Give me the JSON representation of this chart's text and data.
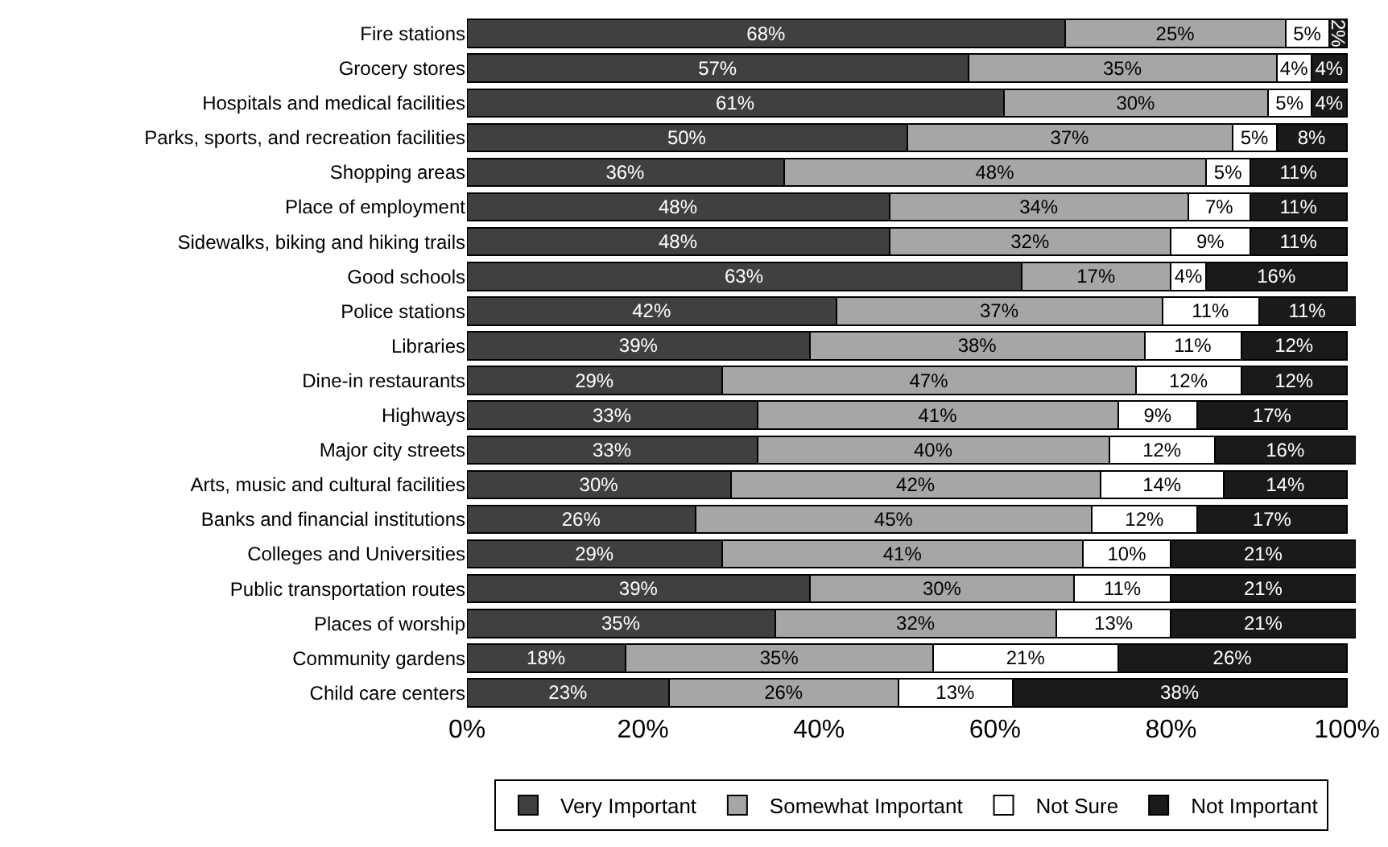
{
  "chart_data": {
    "type": "bar",
    "orientation": "horizontal",
    "stacked": true,
    "categories": [
      "Fire stations",
      "Grocery stores",
      "Hospitals and medical facilities",
      "Parks, sports, and recreation facilities",
      "Shopping areas",
      "Place of employment",
      "Sidewalks, biking and hiking trails",
      "Good schools",
      "Police stations",
      "Libraries",
      "Dine-in restaurants",
      "Highways",
      "Major city streets",
      "Arts, music and cultural facilities",
      "Banks and financial institutions",
      "Colleges and Universities",
      "Public transportation routes",
      "Places of worship",
      "Community gardens",
      "Child care centers"
    ],
    "series": [
      {
        "name": "Very Important",
        "color": "#404040",
        "values": [
          68,
          57,
          61,
          50,
          36,
          48,
          48,
          63,
          42,
          39,
          29,
          33,
          33,
          30,
          26,
          29,
          39,
          35,
          18,
          23
        ],
        "value_labels": [
          "68%",
          "57%",
          "61%",
          "50%",
          "36%",
          "48%",
          "48%",
          "63%",
          "42%",
          "39%",
          "29%",
          "33%",
          "33%",
          "30%",
          "26%",
          "29%",
          "39%",
          "35%",
          "18%",
          "23%"
        ]
      },
      {
        "name": "Somewhat Important",
        "color": "#a6a6a6",
        "values": [
          25,
          35,
          30,
          37,
          48,
          34,
          32,
          17,
          37,
          38,
          47,
          41,
          40,
          42,
          45,
          41,
          30,
          32,
          35,
          26
        ],
        "value_labels": [
          "25%",
          "35%",
          "30%",
          "37%",
          "48%",
          "34%",
          "32%",
          "17%",
          "37%",
          "38%",
          "47%",
          "41%",
          "40%",
          "42%",
          "45%",
          "41%",
          "30%",
          "32%",
          "35%",
          "26%"
        ]
      },
      {
        "name": "Not Sure",
        "color": "#ffffff",
        "values": [
          5,
          4,
          5,
          5,
          5,
          7,
          9,
          4,
          11,
          11,
          12,
          9,
          12,
          14,
          12,
          10,
          11,
          13,
          21,
          13
        ],
        "value_labels": [
          "5%",
          "4%",
          "5%",
          "5%",
          "5%",
          "7%",
          "9%",
          "4%",
          "11%",
          "11%",
          "12%",
          "9%",
          "12%",
          "14%",
          "12%",
          "10%",
          "11%",
          "13%",
          "21%",
          "13%"
        ]
      },
      {
        "name": "Not Important",
        "color": "#1a1a1a",
        "values": [
          2,
          4,
          4,
          8,
          11,
          11,
          11,
          16,
          11,
          12,
          12,
          17,
          16,
          14,
          17,
          21,
          21,
          21,
          26,
          38
        ],
        "value_labels": [
          "2%",
          "4%",
          "4%",
          "8%",
          "11%",
          "11%",
          "11%",
          "16%",
          "11%",
          "12%",
          "12%",
          "17%",
          "16%",
          "14%",
          "17%",
          "21%",
          "21%",
          "21%",
          "26%",
          "38%"
        ]
      }
    ],
    "xlim": [
      0,
      101
    ],
    "xticks": [
      {
        "value": 0,
        "label": "0%"
      },
      {
        "value": 20,
        "label": "20%"
      },
      {
        "value": 40,
        "label": "40%"
      },
      {
        "value": 60,
        "label": "60%"
      },
      {
        "value": 80,
        "label": "80%"
      },
      {
        "value": 100,
        "label": "100%"
      }
    ],
    "grid": false,
    "legend": "bottom"
  }
}
